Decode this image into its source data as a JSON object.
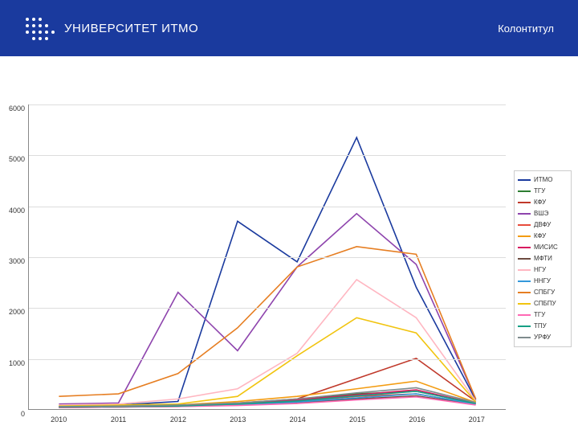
{
  "header": {
    "logo_text": "УНИВЕРСИТЕТ ИТМО",
    "kolontitul": "Колонтитул",
    "bg_color": "#1a3a9e",
    "text_color": "#ffffff"
  },
  "chart": {
    "type": "line",
    "xlabels": [
      "2010",
      "2011",
      "2012",
      "2013",
      "2014",
      "2015",
      "2016",
      "2017"
    ],
    "ylim": [
      0,
      6000
    ],
    "ytick_step": 1000,
    "grid_color": "#dddddd",
    "axis_color": "#888888",
    "line_width": 1.6,
    "series": [
      {
        "name": "ИТМО",
        "color": "#1a3a9e",
        "values": [
          50,
          80,
          150,
          3700,
          2900,
          5350,
          2400,
          180
        ]
      },
      {
        "name": "ТГУ",
        "color": "#2e7d32",
        "values": [
          40,
          60,
          70,
          100,
          180,
          300,
          350,
          120
        ]
      },
      {
        "name": "КФУ",
        "color": "#c0392b",
        "values": [
          60,
          70,
          80,
          120,
          200,
          600,
          1000,
          150
        ]
      },
      {
        "name": "ВШЭ",
        "color": "#8e44ad",
        "values": [
          100,
          120,
          2300,
          1150,
          2800,
          3850,
          2850,
          200
        ]
      },
      {
        "name": "ДВФУ",
        "color": "#e74c3c",
        "values": [
          30,
          40,
          60,
          80,
          150,
          250,
          300,
          100
        ]
      },
      {
        "name": "КФУ",
        "color": "#f39c12",
        "values": [
          50,
          60,
          80,
          150,
          250,
          400,
          550,
          130
        ]
      },
      {
        "name": "МИСИС",
        "color": "#d81b60",
        "values": [
          40,
          50,
          70,
          100,
          180,
          280,
          380,
          110
        ]
      },
      {
        "name": "МФТИ",
        "color": "#6d4c41",
        "values": [
          30,
          40,
          50,
          80,
          120,
          200,
          260,
          90
        ]
      },
      {
        "name": "НГУ",
        "color": "#ffb6c1",
        "values": [
          80,
          100,
          200,
          400,
          1100,
          2550,
          1800,
          160
        ]
      },
      {
        "name": "ННГУ",
        "color": "#3498db",
        "values": [
          40,
          50,
          60,
          90,
          140,
          220,
          300,
          100
        ]
      },
      {
        "name": "СПБГУ",
        "color": "#e67e22",
        "values": [
          250,
          300,
          700,
          1600,
          2800,
          3200,
          3050,
          200
        ]
      },
      {
        "name": "СПБПУ",
        "color": "#f1c40f",
        "values": [
          60,
          80,
          100,
          250,
          1050,
          1800,
          1500,
          140
        ]
      },
      {
        "name": "ТГУ",
        "color": "#ff69b4",
        "values": [
          30,
          40,
          50,
          70,
          110,
          180,
          240,
          80
        ]
      },
      {
        "name": "ТПУ",
        "color": "#16a085",
        "values": [
          40,
          50,
          60,
          100,
          160,
          260,
          350,
          110
        ]
      },
      {
        "name": "УРФУ",
        "color": "#7f8c8d",
        "values": [
          50,
          60,
          80,
          120,
          200,
          320,
          420,
          130
        ]
      }
    ]
  }
}
